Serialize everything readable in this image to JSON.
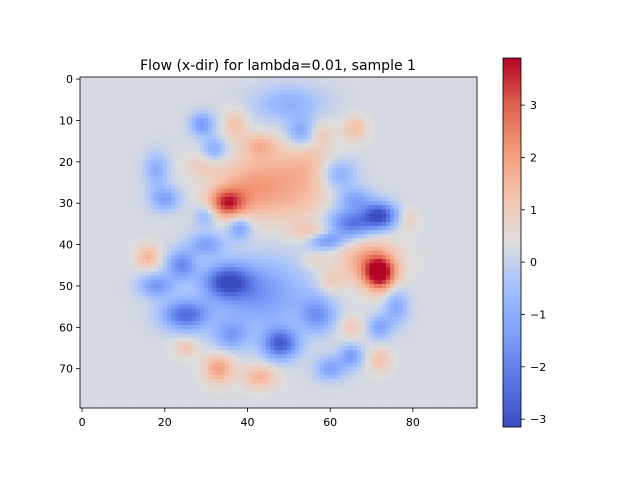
{
  "chart_data": {
    "type": "heatmap",
    "title": "Flow (x-dir) for lambda=0.01, sample 1",
    "xlabel": "",
    "ylabel": "",
    "image_size": {
      "cols": 96,
      "rows": 80
    },
    "xlim": [
      -0.5,
      95.5
    ],
    "ylim": [
      79.5,
      -0.5
    ],
    "x_ticks": [
      0,
      20,
      40,
      60,
      80
    ],
    "y_ticks": [
      0,
      10,
      20,
      30,
      40,
      50,
      60,
      70
    ],
    "colormap": "coolwarm",
    "colorbar": {
      "vmin": -3.15,
      "vmax": 3.9,
      "ticks": [
        -3,
        -2,
        -1,
        0,
        1,
        2,
        3
      ]
    },
    "background_value": 0.25,
    "blobs": [
      {
        "x": 72,
        "y": 47,
        "value": 3.9,
        "rx": 2.6,
        "ry": 2.8
      },
      {
        "x": 69,
        "y": 44,
        "value": 1.9,
        "rx": 5.0,
        "ry": 4.0
      },
      {
        "x": 35,
        "y": 30,
        "value": 3.0,
        "rx": 3.0,
        "ry": 2.4
      },
      {
        "x": 40,
        "y": 27,
        "value": 1.6,
        "rx": 6.0,
        "ry": 5.0
      },
      {
        "x": 48,
        "y": 23,
        "value": 1.2,
        "rx": 7.0,
        "ry": 5.0
      },
      {
        "x": 43,
        "y": 16,
        "value": 1.4,
        "rx": 3.0,
        "ry": 2.0
      },
      {
        "x": 37,
        "y": 11,
        "value": 1.3,
        "rx": 2.0,
        "ry": 2.5
      },
      {
        "x": 55,
        "y": 20,
        "value": 1.0,
        "rx": 4.0,
        "ry": 5.0
      },
      {
        "x": 52,
        "y": 30,
        "value": 0.9,
        "rx": 6.0,
        "ry": 4.0
      },
      {
        "x": 56,
        "y": 37,
        "value": 1.3,
        "rx": 4.0,
        "ry": 1.6
      },
      {
        "x": 29,
        "y": 21,
        "value": 0.9,
        "rx": 3.0,
        "ry": 2.0
      },
      {
        "x": 33,
        "y": 70,
        "value": 2.0,
        "rx": 2.5,
        "ry": 2.5
      },
      {
        "x": 43,
        "y": 72,
        "value": 1.6,
        "rx": 3.0,
        "ry": 2.0
      },
      {
        "x": 25,
        "y": 65,
        "value": 1.2,
        "rx": 2.0,
        "ry": 1.5
      },
      {
        "x": 16,
        "y": 43,
        "value": 1.6,
        "rx": 2.0,
        "ry": 2.0
      },
      {
        "x": 66,
        "y": 12,
        "value": 1.4,
        "rx": 2.0,
        "ry": 2.0
      },
      {
        "x": 58,
        "y": 13,
        "value": 0.9,
        "rx": 2.0,
        "ry": 2.0
      },
      {
        "x": 79,
        "y": 34,
        "value": 0.9,
        "rx": 1.5,
        "ry": 2.0
      },
      {
        "x": 72,
        "y": 68,
        "value": 1.3,
        "rx": 2.0,
        "ry": 2.0
      },
      {
        "x": 65,
        "y": 60,
        "value": 1.1,
        "rx": 2.0,
        "ry": 2.0
      },
      {
        "x": 60,
        "y": 49,
        "value": 1.0,
        "rx": 2.0,
        "ry": 2.0
      },
      {
        "x": 56,
        "y": 44,
        "value": 0.8,
        "rx": 2.0,
        "ry": 1.5
      },
      {
        "x": 72,
        "y": 33,
        "value": -3.0,
        "rx": 2.8,
        "ry": 2.2
      },
      {
        "x": 65,
        "y": 35,
        "value": -2.3,
        "rx": 4.0,
        "ry": 2.5
      },
      {
        "x": 59,
        "y": 39,
        "value": -1.6,
        "rx": 3.0,
        "ry": 1.5
      },
      {
        "x": 35,
        "y": 49,
        "value": -2.6,
        "rx": 4.0,
        "ry": 2.8
      },
      {
        "x": 43,
        "y": 52,
        "value": -1.5,
        "rx": 8.0,
        "ry": 6.0
      },
      {
        "x": 48,
        "y": 64,
        "value": -2.7,
        "rx": 3.0,
        "ry": 2.6
      },
      {
        "x": 25,
        "y": 57,
        "value": -2.4,
        "rx": 4.0,
        "ry": 2.6
      },
      {
        "x": 18,
        "y": 50,
        "value": -1.5,
        "rx": 3.0,
        "ry": 2.0
      },
      {
        "x": 24,
        "y": 45,
        "value": -1.8,
        "rx": 2.5,
        "ry": 2.5
      },
      {
        "x": 30,
        "y": 40,
        "value": -1.3,
        "rx": 3.0,
        "ry": 2.0
      },
      {
        "x": 38,
        "y": 36,
        "value": -1.4,
        "rx": 2.0,
        "ry": 2.0
      },
      {
        "x": 20,
        "y": 29,
        "value": -1.3,
        "rx": 2.5,
        "ry": 2.0
      },
      {
        "x": 18,
        "y": 22,
        "value": -1.0,
        "rx": 2.0,
        "ry": 3.0
      },
      {
        "x": 29,
        "y": 11,
        "value": -1.5,
        "rx": 2.0,
        "ry": 2.0
      },
      {
        "x": 32,
        "y": 17,
        "value": -1.1,
        "rx": 2.0,
        "ry": 2.0
      },
      {
        "x": 50,
        "y": 6,
        "value": -0.9,
        "rx": 6.0,
        "ry": 3.0
      },
      {
        "x": 53,
        "y": 13,
        "value": -1.3,
        "rx": 2.5,
        "ry": 2.5
      },
      {
        "x": 62,
        "y": 23,
        "value": -1.1,
        "rx": 3.0,
        "ry": 2.5
      },
      {
        "x": 66,
        "y": 29,
        "value": -1.2,
        "rx": 3.0,
        "ry": 2.0
      },
      {
        "x": 60,
        "y": 70,
        "value": -1.3,
        "rx": 2.5,
        "ry": 2.0
      },
      {
        "x": 65,
        "y": 67,
        "value": -1.4,
        "rx": 2.0,
        "ry": 2.0
      },
      {
        "x": 76,
        "y": 55,
        "value": -1.1,
        "rx": 2.0,
        "ry": 3.0
      },
      {
        "x": 72,
        "y": 60,
        "value": -1.2,
        "rx": 2.0,
        "ry": 2.0
      },
      {
        "x": 57,
        "y": 57,
        "value": -1.5,
        "rx": 3.0,
        "ry": 3.0
      },
      {
        "x": 36,
        "y": 62,
        "value": -1.2,
        "rx": 3.0,
        "ry": 2.5
      },
      {
        "x": 30,
        "y": 33,
        "value": -0.9,
        "rx": 2.0,
        "ry": 2.0
      }
    ]
  },
  "colors": {
    "low": "#3b4cc0",
    "mid": "#dddddd",
    "high": "#b40426",
    "axis": "#000000"
  }
}
